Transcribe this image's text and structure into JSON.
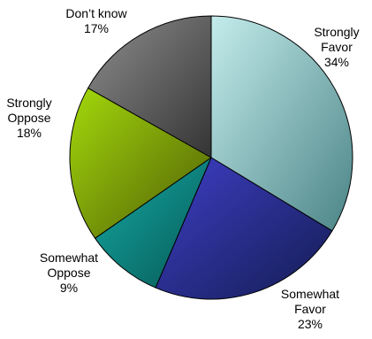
{
  "chart_data": {
    "type": "pie",
    "title": "",
    "start_angle_deg": 0,
    "direction": "clockwise",
    "legend": "none",
    "slices": [
      {
        "key": "strongly-favor",
        "label_lines": [
          "Strongly",
          "Favor"
        ],
        "value": 34,
        "value_label": "34%",
        "color_light": "#c4ecec",
        "color_dark": "#4b8486"
      },
      {
        "key": "somewhat-favor",
        "label_lines": [
          "Somewhat",
          "Favor"
        ],
        "value": 23,
        "value_label": "23%",
        "color_light": "#3e3fc6",
        "color_dark": "#141c52"
      },
      {
        "key": "somewhat-oppose",
        "label_lines": [
          "Somewhat",
          "Oppose"
        ],
        "value": 9,
        "value_label": "9%",
        "color_light": "#15aaa5",
        "color_dark": "#075854"
      },
      {
        "key": "strongly-oppose",
        "label_lines": [
          "Strongly",
          "Oppose"
        ],
        "value": 18,
        "value_label": "18%",
        "color_light": "#a4d90b",
        "color_dark": "#4f5e06"
      },
      {
        "key": "dont-know",
        "label_lines": [
          "Don’t know"
        ],
        "value": 17,
        "value_label": "17%",
        "color_light": "#8e8e8e",
        "color_dark": "#343434"
      }
    ]
  }
}
